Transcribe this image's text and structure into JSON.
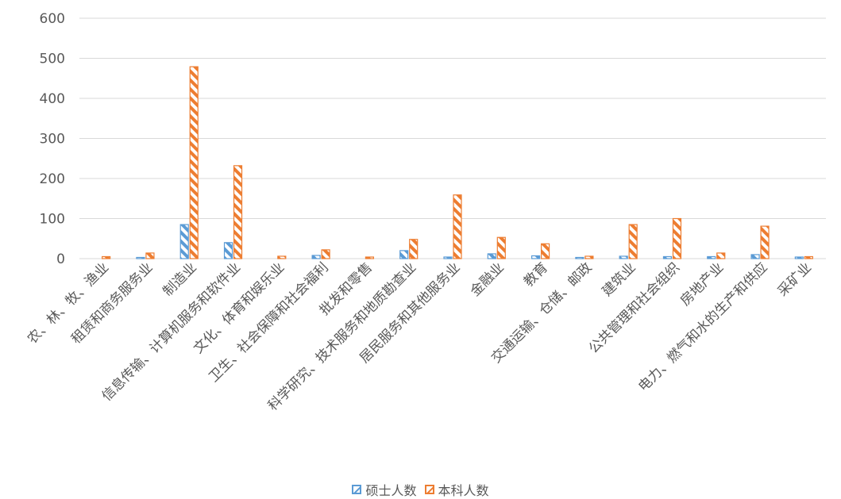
{
  "chart_data": {
    "type": "bar",
    "title": "",
    "xlabel": "",
    "ylabel": "",
    "ylim": [
      0,
      600
    ],
    "yticks": [
      0,
      100,
      200,
      300,
      400,
      500,
      600
    ],
    "grid": true,
    "legend_position": "bottom",
    "categories": [
      "农、林、牧、渔业",
      "租赁和商务服务业",
      "制造业",
      "信息传输、计算机服务和软件业",
      "文化、体育和娱乐业",
      "卫生、社会保障和社会福利",
      "批发和零售",
      "科学研究、技术服务和地质勘查业",
      "居民服务和其他服务业",
      "金融业",
      "教育",
      "交通运输、仓储、邮政",
      "建筑业",
      "公共管理和社会组织",
      "房地产业",
      "电力、燃气和水的生产和供应",
      "采矿业"
    ],
    "series": [
      {
        "name": "硕士人数",
        "color": "#5b9bd5",
        "values": [
          0,
          3,
          85,
          40,
          0,
          8,
          0,
          20,
          4,
          12,
          7,
          3,
          6,
          5,
          5,
          10,
          4
        ]
      },
      {
        "name": "本科人数",
        "color": "#ed7d31",
        "values": [
          5,
          14,
          479,
          232,
          6,
          22,
          4,
          48,
          159,
          53,
          37,
          6,
          85,
          100,
          14,
          81,
          5
        ]
      }
    ]
  }
}
